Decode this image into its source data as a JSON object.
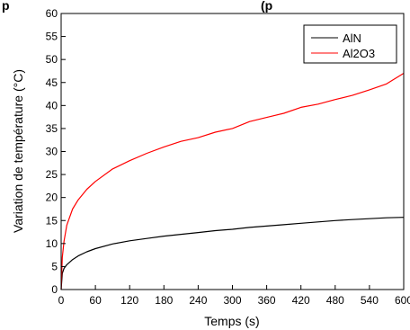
{
  "header_fragment": "p",
  "header_fragment_right": "(p",
  "chart_data": {
    "type": "line",
    "title": "",
    "xlabel": "Temps (s)",
    "ylabel": "Variation de température (°C)",
    "xlim": [
      0,
      600
    ],
    "ylim": [
      0,
      60
    ],
    "x_ticks": [
      0,
      60,
      120,
      180,
      240,
      300,
      360,
      420,
      480,
      540,
      600
    ],
    "y_ticks": [
      0,
      5,
      10,
      15,
      20,
      25,
      30,
      35,
      40,
      45,
      50,
      55,
      60
    ],
    "grid": false,
    "legend": "top-right",
    "x": [
      0,
      2,
      5,
      10,
      20,
      30,
      45,
      60,
      90,
      120,
      150,
      180,
      210,
      240,
      270,
      300,
      330,
      360,
      390,
      420,
      450,
      480,
      510,
      540,
      570,
      600
    ],
    "series": [
      {
        "name": "AlN",
        "color": "#000000",
        "values": [
          0,
          3.5,
          4.6,
          5.4,
          6.5,
          7.3,
          8.2,
          8.9,
          9.9,
          10.6,
          11.1,
          11.6,
          12.0,
          12.4,
          12.8,
          13.1,
          13.5,
          13.8,
          14.1,
          14.4,
          14.7,
          15.0,
          15.2,
          15.4,
          15.6,
          15.7
        ]
      },
      {
        "name": "Al2O3",
        "color": "#ff0000",
        "values": [
          0,
          7.0,
          10.5,
          14.0,
          17.5,
          19.5,
          21.8,
          23.5,
          26.2,
          28.0,
          29.6,
          31.0,
          32.2,
          33.0,
          34.2,
          35.0,
          36.5,
          37.4,
          38.3,
          39.6,
          40.3,
          41.3,
          42.2,
          43.4,
          44.7,
          47.0
        ]
      }
    ]
  }
}
